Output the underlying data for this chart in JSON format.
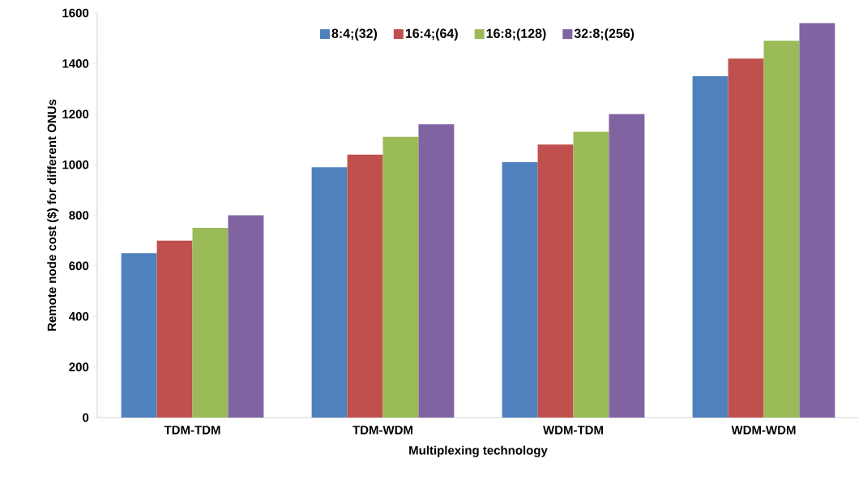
{
  "chart_data": {
    "type": "bar",
    "xlabel": "Multiplexing technology",
    "ylabel": "Remote node cost ($) for different ONUs",
    "categories": [
      "TDM-TDM",
      "TDM-WDM",
      "WDM-TDM",
      "WDM-WDM"
    ],
    "series": [
      {
        "name": "8:4;(32)",
        "color": "#4f81bd",
        "values": [
          650,
          990,
          1010,
          1350
        ]
      },
      {
        "name": "16:4;(64)",
        "color": "#c0504d",
        "values": [
          700,
          1040,
          1080,
          1420
        ]
      },
      {
        "name": "16:8;(128)",
        "color": "#9bbb59",
        "values": [
          750,
          1110,
          1130,
          1490
        ]
      },
      {
        "name": "32:8;(256)",
        "color": "#8064a2",
        "values": [
          800,
          1160,
          1200,
          1560
        ]
      }
    ],
    "ylim": [
      0,
      1600
    ],
    "yticks": [
      0,
      200,
      400,
      600,
      800,
      1000,
      1200,
      1400,
      1600
    ],
    "grid": false,
    "legend": "top"
  }
}
